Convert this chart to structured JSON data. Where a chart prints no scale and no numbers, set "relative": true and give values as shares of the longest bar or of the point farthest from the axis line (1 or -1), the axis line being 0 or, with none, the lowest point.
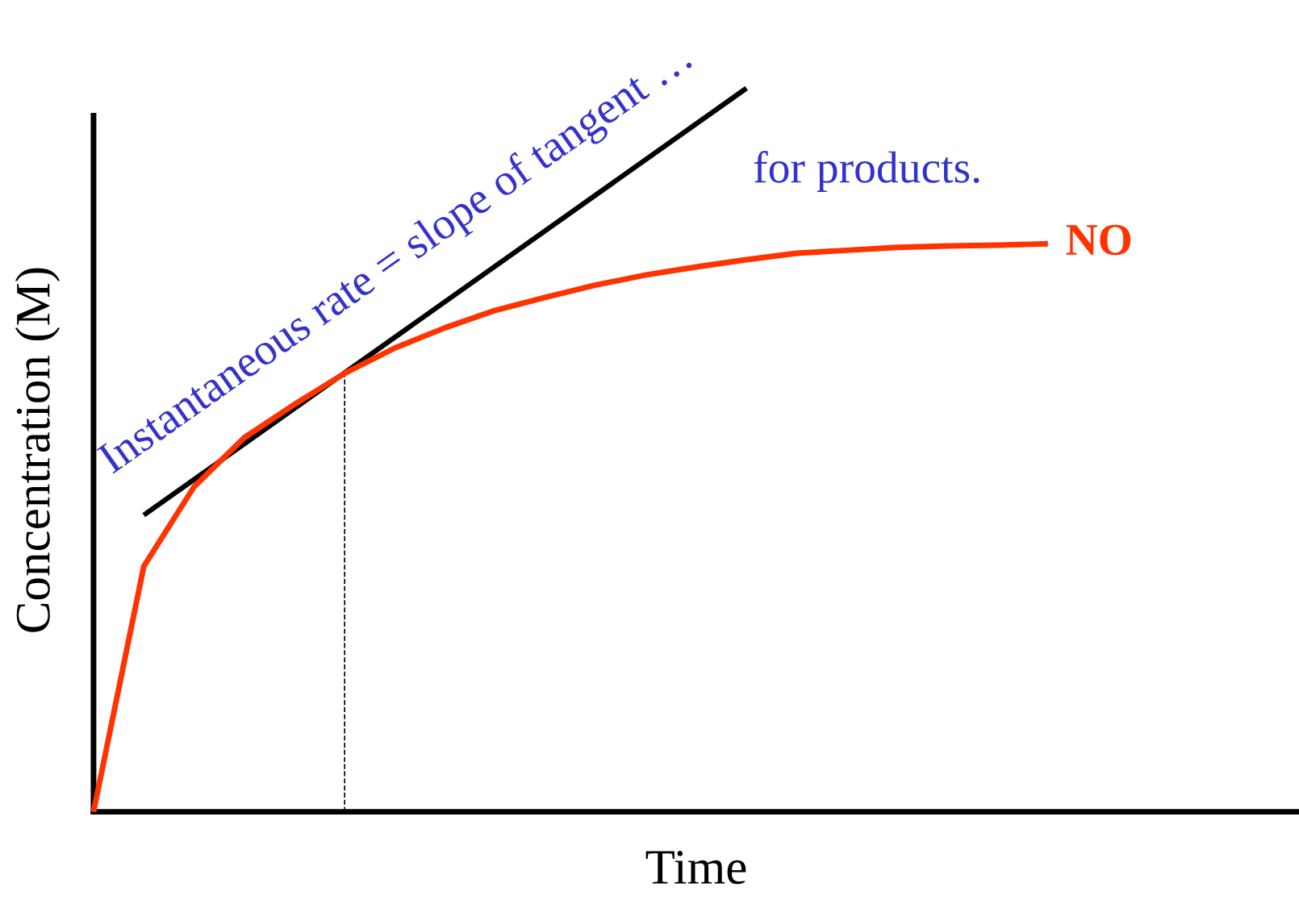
{
  "chart_data": {
    "type": "line",
    "relative": true,
    "xlabel": "Time",
    "ylabel": "Concentration (M)",
    "categories": [
      null,
      null,
      null,
      null,
      null,
      null,
      null,
      null,
      null,
      null,
      null,
      null,
      null,
      null,
      null,
      null,
      null,
      null,
      null,
      null,
      null,
      null,
      null,
      null,
      null
    ],
    "series": [
      {
        "name": "NO",
        "color": "#ff3300",
        "values": [
          0,
          0.339,
          0.449,
          0.517,
          0.563,
          0.606,
          0.641,
          0.669,
          0.693,
          0.711,
          0.728,
          0.742,
          0.753,
          0.763,
          0.772,
          0.776,
          0.78,
          0.782,
          0.783,
          0.785,
          null,
          null,
          null,
          null,
          null
        ]
      },
      {
        "type": "line",
        "color": "#000000",
        "values": [
          null,
          0.41,
          null,
          null,
          null,
          null,
          null,
          null,
          null,
          null,
          null,
          null,
          null,
          1.0,
          null,
          null,
          null,
          null,
          null,
          null,
          null,
          null,
          null,
          null,
          null
        ]
      }
    ],
    "annotations": [
      "Instantaneous rate = slope of tangent …",
      "for products."
    ]
  }
}
